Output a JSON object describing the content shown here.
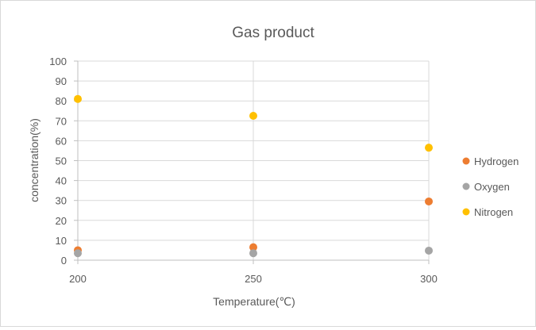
{
  "chart_data": {
    "type": "scatter",
    "title": "Gas product",
    "xlabel": "Temperature(℃)",
    "ylabel": "concentration(%)",
    "xlim": [
      200,
      300
    ],
    "ylim": [
      0,
      100
    ],
    "x_ticks": [
      200,
      250,
      300
    ],
    "y_ticks": [
      0,
      10,
      20,
      30,
      40,
      50,
      60,
      70,
      80,
      90,
      100
    ],
    "grid": true,
    "legend_position": "right",
    "series": [
      {
        "name": "Hydrogen",
        "color": "#ed7d31",
        "points": [
          {
            "x": 200,
            "y": 5
          },
          {
            "x": 250,
            "y": 6.5
          },
          {
            "x": 300,
            "y": 29.5
          }
        ]
      },
      {
        "name": "Oxygen",
        "color": "#a5a5a5",
        "points": [
          {
            "x": 200,
            "y": 3.5
          },
          {
            "x": 250,
            "y": 3.5
          },
          {
            "x": 300,
            "y": 4.8
          }
        ]
      },
      {
        "name": "Nitrogen",
        "color": "#ffc000",
        "points": [
          {
            "x": 200,
            "y": 81
          },
          {
            "x": 250,
            "y": 72.5
          },
          {
            "x": 300,
            "y": 56.5
          }
        ]
      }
    ]
  }
}
